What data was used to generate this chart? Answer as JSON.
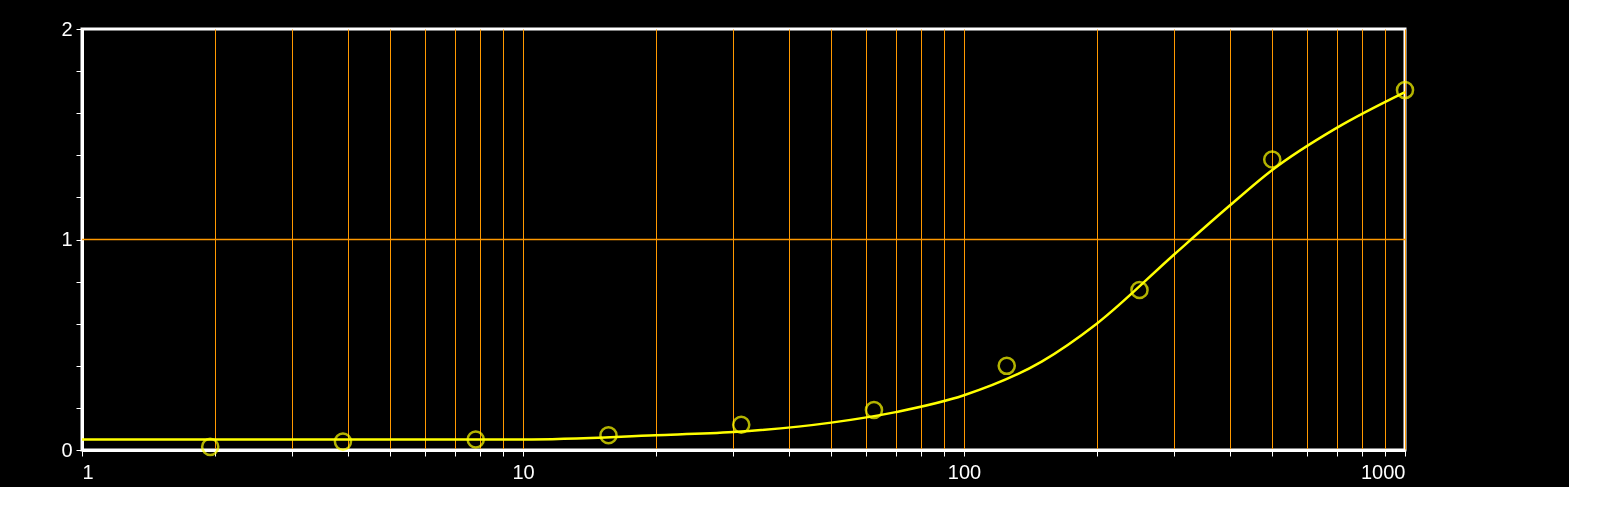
{
  "chart_data": {
    "type": "scatter",
    "log": "x",
    "grid": "x",
    "xlim": [
      1,
      1000
    ],
    "ylim": [
      0,
      2
    ],
    "xticks": [
      1,
      {
        "value": 2,
        "label": null
      },
      {
        "value": 3,
        "label": null
      },
      {
        "value": 4,
        "label": null
      },
      {
        "value": 5,
        "label": null
      },
      {
        "value": 6,
        "label": null
      },
      {
        "value": 7,
        "label": null
      },
      {
        "value": 8,
        "label": null
      },
      {
        "value": 9,
        "label": null
      },
      10,
      {
        "value": 20,
        "label": null
      },
      {
        "value": 30,
        "label": null
      },
      {
        "value": 40,
        "label": null
      },
      {
        "value": 50,
        "label": null
      },
      {
        "value": 60,
        "label": null
      },
      {
        "value": 70,
        "label": null
      },
      {
        "value": 80,
        "label": null
      },
      {
        "value": 90,
        "label": null
      },
      100,
      {
        "value": 200,
        "label": null
      },
      {
        "value": 300,
        "label": null
      },
      {
        "value": 400,
        "label": null
      },
      {
        "value": 500,
        "label": null
      },
      {
        "value": 600,
        "label": null
      },
      {
        "value": 700,
        "label": null
      },
      {
        "value": 800,
        "label": null
      },
      {
        "value": 900,
        "label": null
      },
      1000
    ],
    "yticks": [
      0,
      {
        "value": 0.2,
        "label": null
      },
      {
        "value": 0.4,
        "label": null
      },
      {
        "value": 0.6,
        "label": null
      },
      {
        "value": 0.8,
        "label": null
      },
      1,
      {
        "value": 1.2,
        "label": null
      },
      {
        "value": 1.4,
        "label": null
      },
      {
        "value": 1.6,
        "label": null
      },
      {
        "value": 1.8,
        "label": null
      },
      2
    ],
    "ref_lines": [
      {
        "axis": "y",
        "value": 1,
        "label": null,
        "color": "#ff9900"
      }
    ],
    "series": [
      {
        "color": "#ffff00",
        "marker": "circle",
        "x": [
          1.953,
          3.906,
          7.8125,
          15.625,
          31.25,
          62.5,
          125,
          250,
          500,
          1000
        ],
        "values": [
          0.015,
          0.04,
          0.05,
          0.07,
          0.12,
          0.19,
          0.4,
          0.76,
          1.38,
          1.71
        ]
      },
      {
        "type": "line",
        "color": "#ffff00",
        "marker": "none",
        "x": [
          1,
          5,
          10,
          20,
          30,
          50,
          70,
          100,
          150,
          200,
          300,
          400,
          500,
          700,
          1000
        ],
        "values": [
          0.05,
          0.05,
          0.05,
          0.07,
          0.085,
          0.13,
          0.18,
          0.26,
          0.42,
          0.6,
          0.93,
          1.16,
          1.33,
          1.53,
          1.7
        ]
      }
    ]
  }
}
